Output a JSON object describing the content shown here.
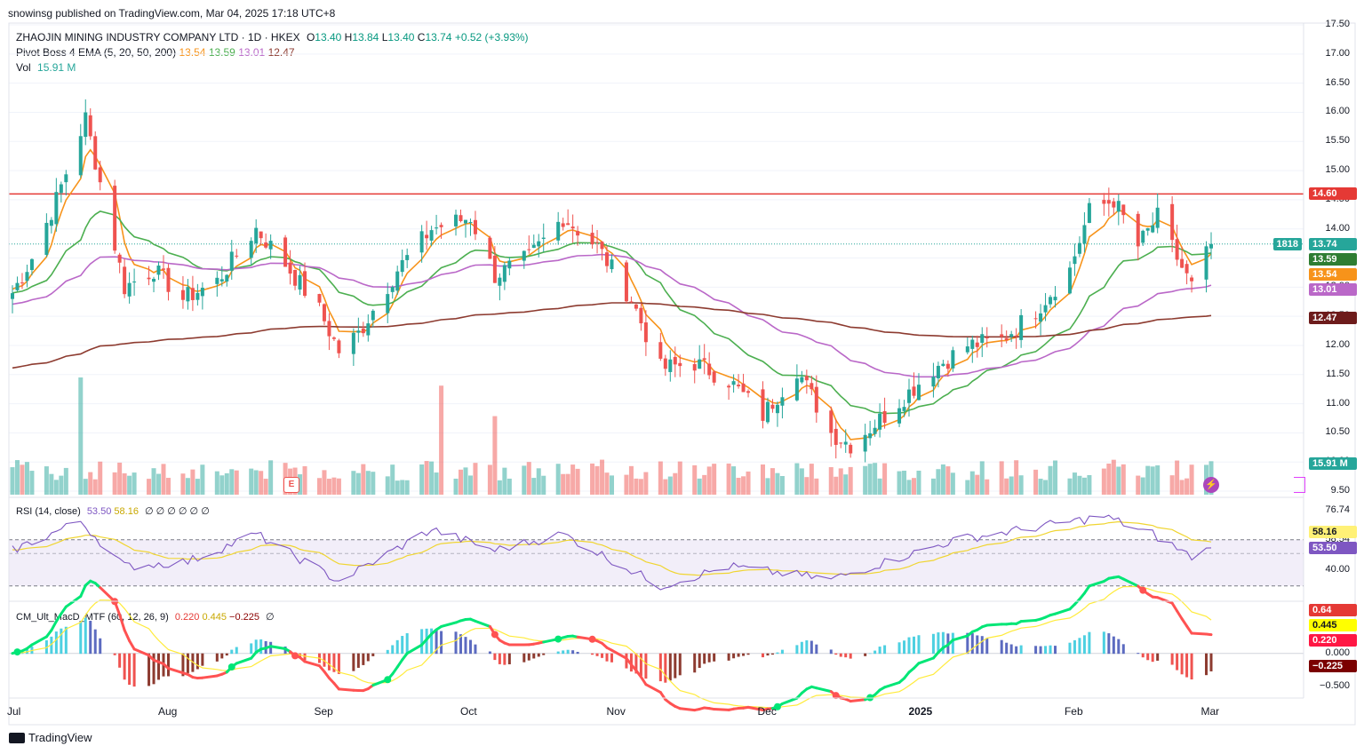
{
  "publisher": "snowinsg published on TradingView.com, Mar 04, 2025 17:18 UTC+8",
  "symbol": {
    "name": "ZHAOJIN MINING INDUSTRY COMPANY LTD · 1D · HKEX",
    "o_label": "O",
    "o": "13.40",
    "h_label": "H",
    "h": "13.84",
    "l_label": "L",
    "l": "13.40",
    "c_label": "C",
    "c": "13.74",
    "change": "+0.52 (+3.93%)"
  },
  "ema_legend": {
    "label": "Pivot Boss 4 EMA (5, 20, 50, 200)",
    "v5": "13.54",
    "v20": "13.59",
    "v50": "13.01",
    "v200": "12.47"
  },
  "vol_legend": {
    "label": "Vol",
    "value": "15.91 M"
  },
  "rsi_legend": {
    "label": "RSI (14, close)",
    "rsi": "53.50",
    "ma": "58.16",
    "extras": "∅ ∅ ∅ ∅ ∅ ∅"
  },
  "macd_legend": {
    "label": "CM_Ult_MacD_MTF (60, 12, 26, 9)",
    "macd": "0.220",
    "signal": "0.445",
    "hist": "−0.225",
    "extra": "∅"
  },
  "price_axis": [
    "17.50",
    "17.00",
    "16.50",
    "16.00",
    "15.50",
    "15.00",
    "14.50",
    "14.00",
    "13.50",
    "13.00",
    "12.50",
    "12.00",
    "11.50",
    "11.00",
    "10.50",
    "10.00",
    "9.50"
  ],
  "rsi_axis": [
    "76.74",
    "58.54",
    "40.00"
  ],
  "macd_axis": [
    "0.000",
    "−0.500"
  ],
  "badges": {
    "resistance": "14.60",
    "countdown": "1818",
    "close": "13.74",
    "ema20": "13.59",
    "ema5": "13.54",
    "ema50": "13.01",
    "ema200": "12.47",
    "volume": "15.91 M",
    "rsi_ma": "58.16",
    "rsi": "53.50",
    "macd_peak": "0.64",
    "macd_signal": "0.445",
    "macd_line": "0.220",
    "macd_hist": "−0.225"
  },
  "time_axis": [
    "Jul",
    "Aug",
    "Sep",
    "Oct",
    "Nov",
    "Dec",
    "2025",
    "Feb",
    "Mar"
  ],
  "footer": "TradingView",
  "colors": {
    "up": "#26a69a",
    "down": "#ef5350",
    "ema5": "#f7931a",
    "ema20": "#4caf50",
    "ema50": "#ba68c8",
    "ema200": "#8d3b30",
    "resistance": "#e53935",
    "rsi": "#7e57c2",
    "rsi_ma": "#f0d531",
    "macd_up": "#00e676",
    "macd_down": "#ff5252"
  },
  "chart_data": [
    {
      "type": "candlestick",
      "title": "ZHAOJIN MINING INDUSTRY COMPANY LTD · 1D · HKEX",
      "ylim": [
        9.5,
        17.5
      ],
      "x_range": [
        "2024-07-01",
        "2025-03-04"
      ],
      "horizontal_line": 14.6,
      "anchors": [
        {
          "date": "2024-07-01",
          "close": 12.9
        },
        {
          "date": "2024-07-05",
          "close": 13.5
        },
        {
          "date": "2024-07-10",
          "close": 14.5
        },
        {
          "date": "2024-07-16",
          "close": 15.9
        },
        {
          "date": "2024-07-19",
          "close": 14.8
        },
        {
          "date": "2024-07-24",
          "close": 13.0
        },
        {
          "date": "2024-07-30",
          "close": 13.3
        },
        {
          "date": "2024-08-05",
          "close": 12.8
        },
        {
          "date": "2024-08-12",
          "close": 13.1
        },
        {
          "date": "2024-08-20",
          "close": 14.0
        },
        {
          "date": "2024-08-26",
          "close": 13.4
        },
        {
          "date": "2024-09-02",
          "close": 12.6
        },
        {
          "date": "2024-09-06",
          "close": 11.9
        },
        {
          "date": "2024-09-10",
          "close": 12.2
        },
        {
          "date": "2024-09-18",
          "close": 13.3
        },
        {
          "date": "2024-09-25",
          "close": 14.0
        },
        {
          "date": "2024-10-03",
          "close": 14.2
        },
        {
          "date": "2024-10-08",
          "close": 13.2
        },
        {
          "date": "2024-10-15",
          "close": 13.5
        },
        {
          "date": "2024-10-22",
          "close": 14.2
        },
        {
          "date": "2024-10-29",
          "close": 13.7
        },
        {
          "date": "2024-11-05",
          "close": 12.8
        },
        {
          "date": "2024-11-11",
          "close": 11.6
        },
        {
          "date": "2024-11-18",
          "close": 11.7
        },
        {
          "date": "2024-11-25",
          "close": 11.4
        },
        {
          "date": "2024-12-02",
          "close": 10.8
        },
        {
          "date": "2024-12-09",
          "close": 11.6
        },
        {
          "date": "2024-12-16",
          "close": 10.5
        },
        {
          "date": "2024-12-20",
          "close": 10.3
        },
        {
          "date": "2024-12-27",
          "close": 10.8
        },
        {
          "date": "2025-01-06",
          "close": 11.6
        },
        {
          "date": "2025-01-13",
          "close": 12.0
        },
        {
          "date": "2025-01-20",
          "close": 12.1
        },
        {
          "date": "2025-01-27",
          "close": 12.6
        },
        {
          "date": "2025-02-03",
          "close": 13.3
        },
        {
          "date": "2025-02-07",
          "close": 14.3
        },
        {
          "date": "2025-02-12",
          "close": 14.5
        },
        {
          "date": "2025-02-17",
          "close": 13.7
        },
        {
          "date": "2025-02-21",
          "close": 14.2
        },
        {
          "date": "2025-02-25",
          "close": 13.5
        },
        {
          "date": "2025-02-28",
          "close": 13.0
        },
        {
          "date": "2025-03-04",
          "close": 13.74
        }
      ],
      "series": [
        {
          "name": "EMA 5",
          "last": 13.54
        },
        {
          "name": "EMA 20",
          "last": 13.59
        },
        {
          "name": "EMA 50",
          "last": 13.01
        },
        {
          "name": "EMA 200",
          "last": 12.47
        }
      ]
    },
    {
      "type": "bar",
      "title": "Vol",
      "last": "15.91 M",
      "notable_spikes": [
        {
          "date": "2024-07-15",
          "rel": 1.0
        },
        {
          "date": "2024-09-27",
          "rel": 0.93
        },
        {
          "date": "2024-10-08",
          "rel": 0.67
        }
      ]
    },
    {
      "type": "line",
      "title": "RSI (14, close)",
      "ylim": [
        26,
        82
      ],
      "bands": [
        76.74,
        58.54,
        40.0
      ],
      "anchors": [
        {
          "date": "2024-07-01",
          "rsi": 52
        },
        {
          "date": "2024-07-15",
          "rsi": 70
        },
        {
          "date": "2024-07-24",
          "rsi": 42
        },
        {
          "date": "2024-08-06",
          "rsi": 45
        },
        {
          "date": "2024-08-20",
          "rsi": 62
        },
        {
          "date": "2024-09-06",
          "rsi": 33
        },
        {
          "date": "2024-09-25",
          "rsi": 65
        },
        {
          "date": "2024-10-08",
          "rsi": 52
        },
        {
          "date": "2024-10-22",
          "rsi": 62
        },
        {
          "date": "2024-11-11",
          "rsi": 30
        },
        {
          "date": "2024-11-25",
          "rsi": 42
        },
        {
          "date": "2024-12-16",
          "rsi": 34
        },
        {
          "date": "2025-01-10",
          "rsi": 58
        },
        {
          "date": "2025-02-10",
          "rsi": 73
        },
        {
          "date": "2025-02-20",
          "rsi": 62
        },
        {
          "date": "2025-02-28",
          "rsi": 48
        },
        {
          "date": "2025-03-04",
          "rsi": 53.5
        }
      ],
      "series": [
        {
          "name": "RSI",
          "last": 53.5
        },
        {
          "name": "RSI MA",
          "last": 58.16
        }
      ]
    },
    {
      "type": "line",
      "title": "CM_Ult_MacD_MTF (60, 12, 26, 9)",
      "ylim": [
        -0.5,
        0.64
      ],
      "series": [
        {
          "name": "MACD",
          "last": 0.22
        },
        {
          "name": "Signal",
          "last": 0.445
        },
        {
          "name": "Histogram",
          "last": -0.225
        }
      ]
    }
  ]
}
